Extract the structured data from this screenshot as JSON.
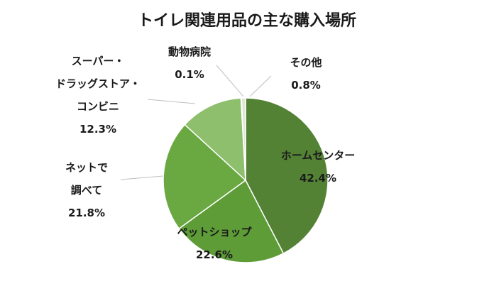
{
  "chart_data": {
    "type": "pie",
    "title": "トイレ関連用品の主な購入場所",
    "start_angle_deg": 0,
    "direction": "clockwise",
    "slices": [
      {
        "label_lines": [
          "ホームセンター"
        ],
        "value": 42.4,
        "value_label": "42.4%",
        "color": "#548235"
      },
      {
        "label_lines": [
          "ペットショップ"
        ],
        "value": 22.6,
        "value_label": "22.6%",
        "color": "#5e9c38"
      },
      {
        "label_lines": [
          "ネットで",
          "調べて"
        ],
        "value": 21.8,
        "value_label": "21.8%",
        "color": "#6aa842"
      },
      {
        "label_lines": [
          "スーパー・",
          "ドラッグストア・",
          "コンビニ"
        ],
        "value": 12.3,
        "value_label": "12.3%",
        "color": "#8dbf6c"
      },
      {
        "label_lines": [
          "動物病院"
        ],
        "value": 0.1,
        "value_label": "0.1%",
        "color": "#b8d6a2"
      },
      {
        "label_lines": [
          "その他"
        ],
        "value": 0.8,
        "value_label": "0.8%",
        "color": "#dde8d3"
      }
    ],
    "legend": "none",
    "labels": "outside-and-inside-with-leader-lines"
  }
}
